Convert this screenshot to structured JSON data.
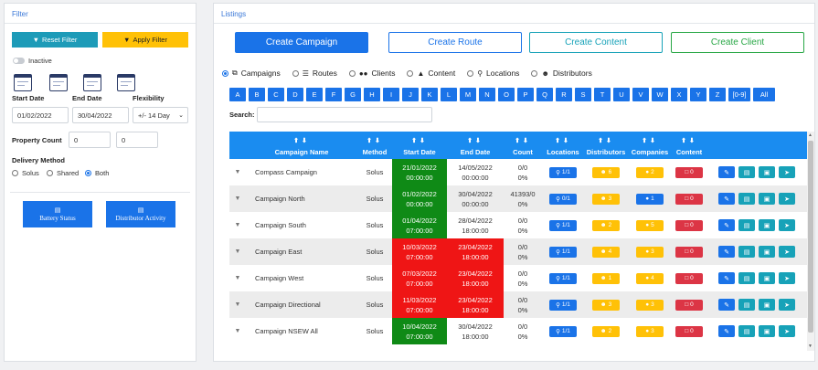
{
  "filter": {
    "title": "Filter",
    "reset_label": "Reset Filter",
    "apply_label": "Apply Filter",
    "inactive_label": "Inactive",
    "start_date_label": "Start Date",
    "end_date_label": "End Date",
    "flexibility_label": "Flexibility",
    "start_date_value": "01/02/2022",
    "end_date_value": "30/04/2022",
    "flexibility_value": "+/- 14 Day",
    "property_count_label": "Property Count",
    "property_count_min": "0",
    "property_count_max": "0",
    "delivery_method_label": "Delivery Method",
    "delivery_options": [
      "Solus",
      "Shared",
      "Both"
    ],
    "delivery_selected": "Both",
    "battery_status_label": "Battery Status",
    "distributor_activity_label": "Distributor Activity"
  },
  "listings": {
    "title": "Listings",
    "create_campaign": "Create Campaign",
    "create_route": "Create Route",
    "create_content": "Create Content",
    "create_client": "Create Client",
    "view_options": [
      "Campaigns",
      "Routes",
      "Clients",
      "Content",
      "Locations",
      "Distributors"
    ],
    "view_selected": "Campaigns",
    "letters": [
      "A",
      "B",
      "C",
      "D",
      "E",
      "F",
      "G",
      "H",
      "I",
      "J",
      "K",
      "L",
      "M",
      "N",
      "O",
      "P",
      "Q",
      "R",
      "S",
      "T",
      "U",
      "V",
      "W",
      "X",
      "Y",
      "Z",
      "[0-9]",
      "All"
    ],
    "search_label": "Search:",
    "search_value": "",
    "columns": [
      "Campaign Name",
      "Method",
      "Start Date",
      "End Date",
      "Count",
      "Locations",
      "Distributors",
      "Companies",
      "Content"
    ],
    "rows": [
      {
        "name": "Compass Campaign",
        "method": "Solus",
        "start_date": "21/01/2022",
        "start_time": "00:00:00",
        "start_status": "green",
        "end_date": "14/05/2022",
        "end_time": "00:00:00",
        "end_status": "none",
        "count": "0/0",
        "pct": "0%",
        "locations": "1/1",
        "distributors": "6",
        "companies": "2",
        "content": "0"
      },
      {
        "name": "Campaign North",
        "method": "Solus",
        "start_date": "01/02/2022",
        "start_time": "00:00:00",
        "start_status": "green",
        "end_date": "30/04/2022",
        "end_time": "00:00:00",
        "end_status": "none",
        "count": "41393/0",
        "pct": "0%",
        "locations": "0/1",
        "distributors": "3",
        "companies": "1",
        "content": "0"
      },
      {
        "name": "Campaign South",
        "method": "Solus",
        "start_date": "01/04/2022",
        "start_time": "07:00:00",
        "start_status": "green",
        "end_date": "28/04/2022",
        "end_time": "18:00:00",
        "end_status": "none",
        "count": "0/0",
        "pct": "0%",
        "locations": "1/1",
        "distributors": "2",
        "companies": "5",
        "content": "0"
      },
      {
        "name": "Campaign East",
        "method": "Solus",
        "start_date": "10/03/2022",
        "start_time": "07:00:00",
        "start_status": "red",
        "end_date": "23/04/2022",
        "end_time": "18:00:00",
        "end_status": "red",
        "count": "0/0",
        "pct": "0%",
        "locations": "1/1",
        "distributors": "4",
        "companies": "3",
        "content": "0"
      },
      {
        "name": "Campaign West",
        "method": "Solus",
        "start_date": "07/03/2022",
        "start_time": "07:00:00",
        "start_status": "red",
        "end_date": "23/04/2022",
        "end_time": "18:00:00",
        "end_status": "red",
        "count": "0/0",
        "pct": "0%",
        "locations": "1/1",
        "distributors": "1",
        "companies": "4",
        "content": "0"
      },
      {
        "name": "Campaign Directional",
        "method": "Solus",
        "start_date": "11/03/2022",
        "start_time": "07:00:00",
        "start_status": "red",
        "end_date": "23/04/2022",
        "end_time": "18:00:00",
        "end_status": "red",
        "count": "0/0",
        "pct": "0%",
        "locations": "1/1",
        "distributors": "3",
        "companies": "3",
        "content": "0"
      },
      {
        "name": "Campaign NSEW All",
        "method": "Solus",
        "start_date": "10/04/2022",
        "start_time": "07:00:00",
        "start_status": "green",
        "end_date": "30/04/2022",
        "end_time": "18:00:00",
        "end_status": "none",
        "count": "0/0",
        "pct": "0%",
        "locations": "1/1",
        "distributors": "2",
        "companies": "3",
        "content": "0"
      }
    ]
  },
  "colors": {
    "primary": "#1a73e8",
    "teal": "#17a2b8",
    "yellow": "#ffc107",
    "green": "#0f8a16",
    "red": "#ef1515"
  }
}
